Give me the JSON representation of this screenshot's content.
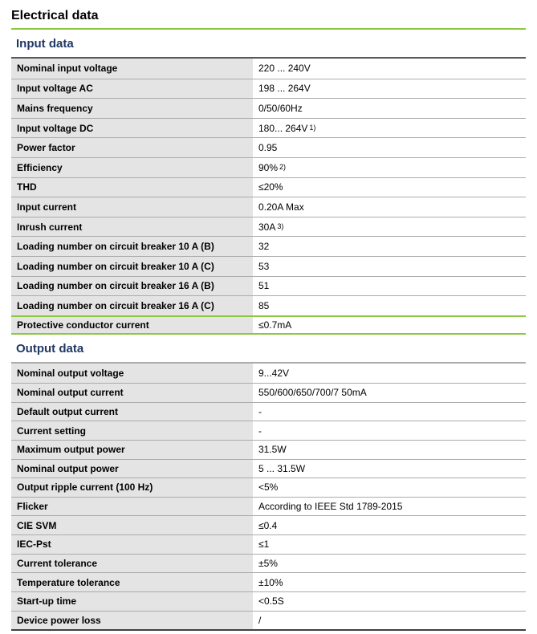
{
  "page": {
    "title": "Electrical data"
  },
  "colors": {
    "accent_green": "#8dc63f",
    "heading_navy": "#1f3864",
    "label_cell_bg": "#e4e4e4",
    "row_divider_gray": "#ababab",
    "table_top_rule": "#595959",
    "table_bottom_rule": "#404040"
  },
  "input_section": {
    "heading": "Input data",
    "rows": [
      {
        "label": "Nominal input voltage",
        "value": "220 ... 240V"
      },
      {
        "label": "Input voltage AC",
        "value": "198 ... 264V"
      },
      {
        "label": "Mains frequency",
        "value": "0/50/60Hz"
      },
      {
        "label": "Input voltage DC",
        "value": "180... 264V",
        "sup": "1)"
      },
      {
        "label": "Power factor",
        "value": "0.95"
      },
      {
        "label": "Efficiency",
        "value": "90%",
        "sup": "2)"
      },
      {
        "label": "THD",
        "value": "≤20%"
      },
      {
        "label": "Input current",
        "value": "0.20A Max"
      },
      {
        "label": "Inrush current",
        "value": "30A",
        "sup": "3)"
      },
      {
        "label": "Loading number on circuit breaker 10 A (B)",
        "value": "32"
      },
      {
        "label": "Loading number on circuit breaker 10 A (C)",
        "value": "53"
      },
      {
        "label": "Loading number on circuit breaker 16 A (B)",
        "value": "51"
      },
      {
        "label": "Loading number on circuit breaker 16 A (C)",
        "value": "85"
      },
      {
        "label": "Protective conductor current",
        "value": "≤0.7mA",
        "highlight": true
      }
    ]
  },
  "output_section": {
    "heading": "Output data",
    "rows": [
      {
        "label": "Nominal output voltage",
        "value": "9...42V"
      },
      {
        "label": "Nominal output current",
        "value": "550/600/650/700/7 50mA"
      },
      {
        "label": "Default output current",
        "value": "-"
      },
      {
        "label": "Current setting",
        "value": "-"
      },
      {
        "label": "Maximum output power",
        "value": "31.5W"
      },
      {
        "label": "Nominal output power",
        "value": "5 ... 31.5W"
      },
      {
        "label": "Output ripple current (100 Hz)",
        "value": "<5%"
      },
      {
        "label": "Flicker",
        "value": "According to IEEE Std 1789-2015"
      },
      {
        "label": "CIE SVM",
        "value": "≤0.4"
      },
      {
        "label": "IEC-Pst",
        "value": "≤1"
      },
      {
        "label": "Current tolerance",
        "value": "±5%"
      },
      {
        "label": "Temperature tolerance",
        "value": "±10%"
      },
      {
        "label": "Start-up time",
        "value": "<0.5S"
      },
      {
        "label": "Device power loss",
        "value": "/"
      }
    ]
  }
}
